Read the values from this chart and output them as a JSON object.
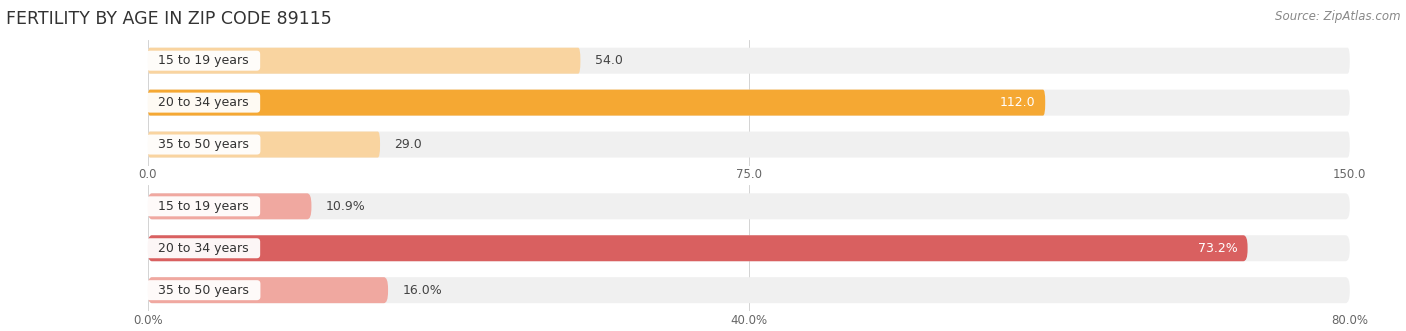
{
  "title": "FERTILITY BY AGE IN ZIP CODE 89115",
  "source": "Source: ZipAtlas.com",
  "chart1": {
    "categories": [
      "15 to 19 years",
      "20 to 34 years",
      "35 to 50 years"
    ],
    "values": [
      54.0,
      112.0,
      29.0
    ],
    "value_labels": [
      "54.0",
      "112.0",
      "29.0"
    ],
    "xlim": [
      0,
      150
    ],
    "xticks": [
      0.0,
      75.0,
      150.0
    ],
    "xtick_labels": [
      "0.0",
      "75.0",
      "150.0"
    ],
    "bar_colors": [
      "#f9d4a0",
      "#f5a833",
      "#f9d4a0"
    ],
    "bar_bg_color": "#f0f0f0",
    "bar_height": 0.62
  },
  "chart2": {
    "categories": [
      "15 to 19 years",
      "20 to 34 years",
      "35 to 50 years"
    ],
    "values": [
      10.9,
      73.2,
      16.0
    ],
    "value_labels": [
      "10.9%",
      "73.2%",
      "16.0%"
    ],
    "xlim": [
      0,
      80
    ],
    "xticks": [
      0.0,
      40.0,
      80.0
    ],
    "xtick_labels": [
      "0.0%",
      "40.0%",
      "80.0%"
    ],
    "bar_colors": [
      "#f0a8a0",
      "#d96060",
      "#f0a8a0"
    ],
    "bar_bg_color": "#f0f0f0",
    "bar_height": 0.62
  },
  "background_color": "#ffffff",
  "label_font_size": 9.0,
  "value_font_size": 9.0,
  "title_font_size": 12.5,
  "source_font_size": 8.5
}
